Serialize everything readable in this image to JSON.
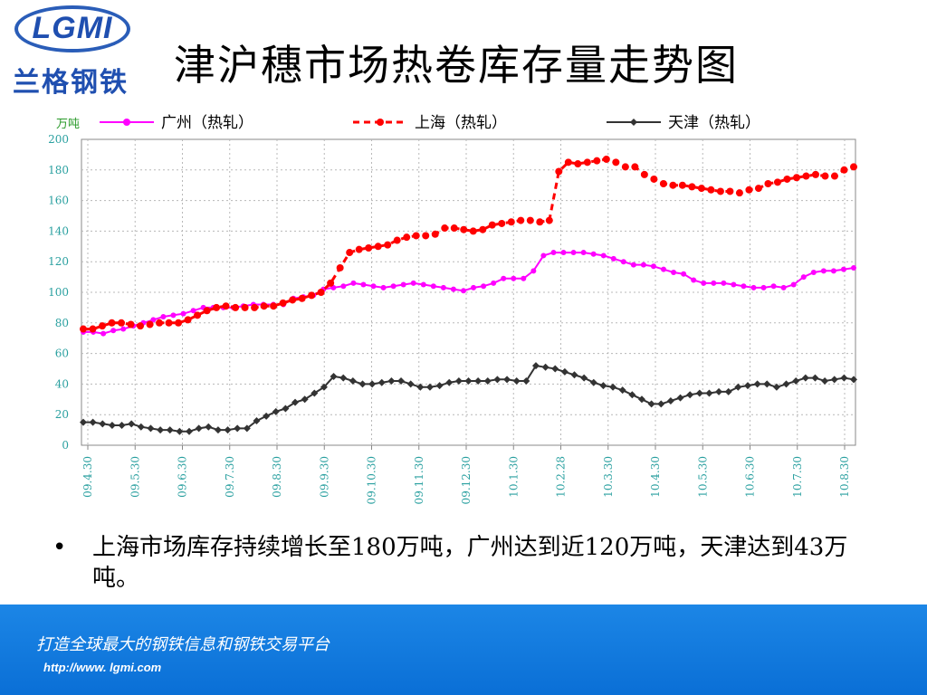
{
  "logo": {
    "text": "LGMI",
    "chinese": "兰格钢铁"
  },
  "title": "津沪穗市场热卷库存量走势图",
  "bullet": "上海市场库存持续增长至180万吨，广州达到近120万吨，天津达到43万吨。",
  "footer": {
    "slogan": "打造全球最大的钢铁信息和钢铁交易平台",
    "url": "http://www. lgmi.com"
  },
  "colors": {
    "guangzhou": "#ff00ff",
    "shanghai": "#ff0000",
    "tianjin": "#333333",
    "footer": "#0a78e0",
    "tick_label": "#2aa0a0"
  },
  "chart_data": {
    "type": "line",
    "unit_label": "万吨",
    "ylim": [
      0,
      200
    ],
    "yticks": [
      0,
      20,
      40,
      60,
      80,
      100,
      120,
      140,
      160,
      180,
      200
    ],
    "x_tick_labels": [
      "09.4.30",
      "09.5.30",
      "09.6.30",
      "09.7.30",
      "09.8.30",
      "09.9.30",
      "09.10.30",
      "09.11.30",
      "09.12.30",
      "10.1.30",
      "10.2.28",
      "10.3.30",
      "10.4.30",
      "10.5.30",
      "10.6.30",
      "10.7.30",
      "10.8.30"
    ],
    "grid": true,
    "legend_position": "top",
    "series": [
      {
        "name": "广州（热轧）",
        "style": "solid",
        "marker": "circle",
        "values": [
          74,
          74,
          73,
          75,
          76,
          78,
          80,
          82,
          84,
          85,
          86,
          88,
          90,
          90,
          90,
          90,
          91,
          92,
          92,
          92,
          92,
          96,
          97,
          98,
          102,
          103,
          104,
          106,
          105,
          104,
          103,
          104,
          105,
          106,
          105,
          104,
          103,
          102,
          101,
          103,
          104,
          106,
          109,
          109,
          109,
          114,
          124,
          126,
          126,
          126,
          126,
          125,
          124,
          122,
          120,
          118,
          118,
          117,
          115,
          113,
          112,
          108,
          106,
          106,
          106,
          105,
          104,
          103,
          103,
          104,
          103,
          105,
          110,
          113,
          114,
          114,
          115,
          116
        ]
      },
      {
        "name": "上海（热轧）",
        "style": "dashed",
        "marker": "circle",
        "values": [
          76,
          76,
          78,
          80,
          80,
          79,
          78,
          79,
          80,
          80,
          80,
          82,
          85,
          88,
          90,
          91,
          90,
          90,
          90,
          91,
          91,
          93,
          95,
          96,
          98,
          100,
          106,
          116,
          126,
          128,
          129,
          130,
          131,
          134,
          136,
          137,
          137,
          138,
          142,
          142,
          141,
          140,
          141,
          144,
          145,
          146,
          147,
          147,
          146,
          147,
          179,
          185,
          184,
          185,
          186,
          187,
          185,
          182,
          182,
          177,
          174,
          171,
          170,
          170,
          169,
          168,
          167,
          166,
          166,
          165,
          167,
          168,
          171,
          172,
          174,
          175,
          176,
          177,
          176,
          176,
          180,
          182
        ]
      },
      {
        "name": "天津（热轧）",
        "style": "solid",
        "marker": "diamond",
        "values": [
          15,
          15,
          14,
          13,
          13,
          14,
          12,
          11,
          10,
          10,
          9,
          9,
          11,
          12,
          10,
          10,
          11,
          11,
          16,
          19,
          22,
          24,
          28,
          30,
          34,
          38,
          45,
          44,
          42,
          40,
          40,
          41,
          42,
          42,
          40,
          38,
          38,
          39,
          41,
          42,
          42,
          42,
          42,
          43,
          43,
          42,
          42,
          52,
          51,
          50,
          48,
          46,
          44,
          41,
          39,
          38,
          36,
          33,
          30,
          27,
          27,
          29,
          31,
          33,
          34,
          34,
          35,
          35,
          38,
          39,
          40,
          40,
          38,
          40,
          42,
          44,
          44,
          42,
          43,
          44,
          43
        ]
      }
    ]
  }
}
